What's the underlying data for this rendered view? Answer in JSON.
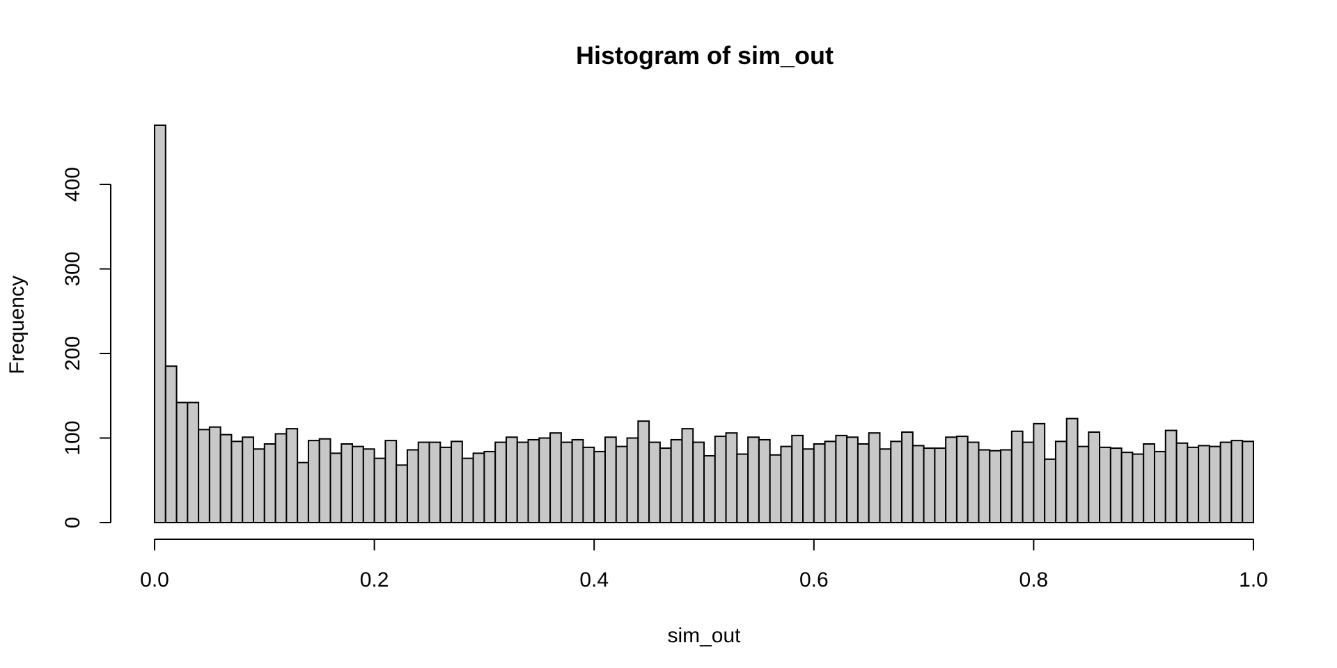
{
  "chart_data": {
    "type": "bar",
    "title": "Histogram of sim_out",
    "xlabel": "sim_out",
    "ylabel": "Frequency",
    "xlim": [
      0,
      1
    ],
    "ylim": [
      0,
      470
    ],
    "grid": false,
    "bin_width": 0.01,
    "x_ticks": [
      0.0,
      0.2,
      0.4,
      0.6,
      0.8,
      1.0
    ],
    "x_tick_labels": [
      "0.0",
      "0.2",
      "0.4",
      "0.6",
      "0.8",
      "1.0"
    ],
    "y_ticks": [
      0,
      100,
      200,
      300,
      400
    ],
    "y_tick_labels": [
      "0",
      "100",
      "200",
      "300",
      "400"
    ],
    "bar_color": "#c8c8c8",
    "edge_color": "#000000",
    "bin_starts": [
      0.0,
      0.01,
      0.02,
      0.03,
      0.04,
      0.05,
      0.06,
      0.07,
      0.08,
      0.09,
      0.1,
      0.11,
      0.12,
      0.13,
      0.14,
      0.15,
      0.16,
      0.17,
      0.18,
      0.19,
      0.2,
      0.21,
      0.22,
      0.23,
      0.24,
      0.25,
      0.26,
      0.27,
      0.28,
      0.29,
      0.3,
      0.31,
      0.32,
      0.33,
      0.34,
      0.35,
      0.36,
      0.37,
      0.38,
      0.39,
      0.4,
      0.41,
      0.42,
      0.43,
      0.44,
      0.45,
      0.46,
      0.47,
      0.48,
      0.49,
      0.5,
      0.51,
      0.52,
      0.53,
      0.54,
      0.55,
      0.56,
      0.57,
      0.58,
      0.59,
      0.6,
      0.61,
      0.62,
      0.63,
      0.64,
      0.65,
      0.66,
      0.67,
      0.68,
      0.69,
      0.7,
      0.71,
      0.72,
      0.73,
      0.74,
      0.75,
      0.76,
      0.77,
      0.78,
      0.79,
      0.8,
      0.81,
      0.82,
      0.83,
      0.84,
      0.85,
      0.86,
      0.87,
      0.88,
      0.89,
      0.9,
      0.91,
      0.92,
      0.93,
      0.94,
      0.95,
      0.96,
      0.97,
      0.98,
      0.99
    ],
    "values": [
      470,
      185,
      142,
      142,
      110,
      113,
      104,
      96,
      101,
      87,
      93,
      105,
      111,
      71,
      97,
      99,
      82,
      93,
      90,
      87,
      76,
      97,
      68,
      86,
      95,
      95,
      89,
      96,
      76,
      82,
      84,
      95,
      101,
      95,
      98,
      100,
      106,
      95,
      98,
      89,
      84,
      101,
      90,
      100,
      120,
      95,
      88,
      98,
      111,
      95,
      79,
      102,
      106,
      81,
      101,
      98,
      80,
      90,
      103,
      87,
      93,
      96,
      103,
      101,
      93,
      106,
      87,
      96,
      107,
      91,
      88,
      88,
      101,
      102,
      95,
      86,
      85,
      86,
      108,
      95,
      117,
      75,
      96,
      123,
      90,
      107,
      89,
      88,
      83,
      81,
      93,
      84,
      109,
      94,
      89,
      91,
      90,
      95,
      97,
      96
    ]
  }
}
